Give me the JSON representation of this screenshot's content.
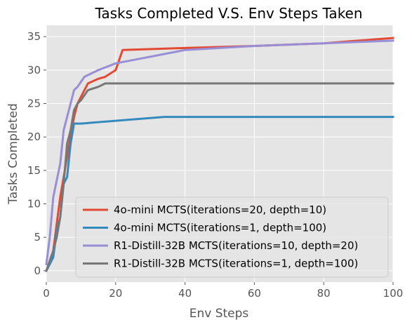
{
  "chart_data": {
    "type": "line",
    "title": "Tasks Completed V.S. Env Steps Taken",
    "xlabel": "Env Steps",
    "ylabel": "Tasks Completed",
    "xlim": [
      0,
      100
    ],
    "ylim": [
      -1.7,
      36.7
    ],
    "xticks": [
      0,
      20,
      40,
      60,
      80,
      100
    ],
    "yticks": [
      0,
      5,
      10,
      15,
      20,
      25,
      30,
      35
    ],
    "grid": true,
    "legend_position": "lower-right",
    "background": "#e5e5e5",
    "series": [
      {
        "name": "4o-mini MCTS(iterations=20, depth=10)",
        "color": "#e24a33",
        "x": [
          0,
          1,
          2,
          3,
          4,
          5,
          6,
          7,
          8,
          9,
          10,
          12,
          15,
          17,
          20,
          22,
          40,
          60,
          80,
          100
        ],
        "y": [
          0,
          1,
          3,
          7,
          11,
          14,
          17,
          20,
          23,
          25,
          26,
          28,
          28.7,
          29,
          30,
          33,
          33.3,
          33.6,
          34,
          34.8
        ]
      },
      {
        "name": "4o-mini MCTS(iterations=1, depth=100)",
        "color": "#348abd",
        "x": [
          0,
          1,
          2,
          3,
          4,
          5,
          6,
          7,
          8,
          10,
          34,
          40,
          60,
          80,
          100
        ],
        "y": [
          0,
          1,
          2,
          6,
          8,
          13,
          14,
          19,
          22,
          22,
          23,
          23,
          23,
          23,
          23
        ]
      },
      {
        "name": "R1-Distill-32B MCTS(iterations=10, depth=20)",
        "color": "#988ed5",
        "x": [
          0,
          1,
          2,
          3,
          4,
          5,
          6,
          7,
          8,
          9,
          11,
          15,
          20,
          30,
          40,
          60,
          80,
          100
        ],
        "y": [
          1,
          5,
          11,
          13.5,
          16,
          21,
          23,
          25,
          27,
          27.5,
          29,
          30,
          31,
          32,
          33,
          33.6,
          34,
          34.4
        ]
      },
      {
        "name": "R1-Distill-32B MCTS(iterations=1, depth=100)",
        "color": "#777777",
        "x": [
          0,
          1,
          2,
          3,
          4,
          5,
          6,
          7,
          8,
          9,
          10,
          12,
          15,
          17,
          20,
          40,
          60,
          80,
          100
        ],
        "y": [
          0,
          1.5,
          3,
          5,
          8,
          13,
          19,
          21,
          24,
          25,
          25.5,
          27,
          27.5,
          28,
          28,
          28,
          28,
          28,
          28
        ]
      }
    ]
  }
}
